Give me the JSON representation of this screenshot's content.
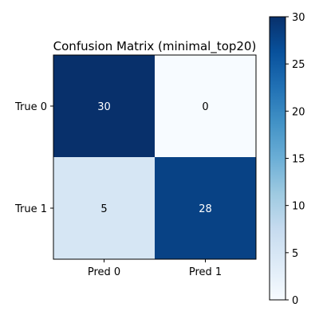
{
  "chart_data": {
    "type": "heatmap",
    "title": "Confusion Matrix (minimal_top20)",
    "xlabel": "",
    "ylabel": "",
    "row_labels": [
      "True 0",
      "True 1"
    ],
    "col_labels": [
      "Pred 0",
      "Pred 1"
    ],
    "values": [
      [
        30,
        0
      ],
      [
        5,
        28
      ]
    ],
    "colormap": "Blues",
    "vmin": 0,
    "vmax": 30,
    "colorbar": {
      "ticks": [
        0,
        5,
        10,
        15,
        20,
        25,
        30
      ],
      "tick_labels": [
        "0",
        "5",
        "10",
        "15",
        "20",
        "25",
        "30"
      ]
    }
  }
}
